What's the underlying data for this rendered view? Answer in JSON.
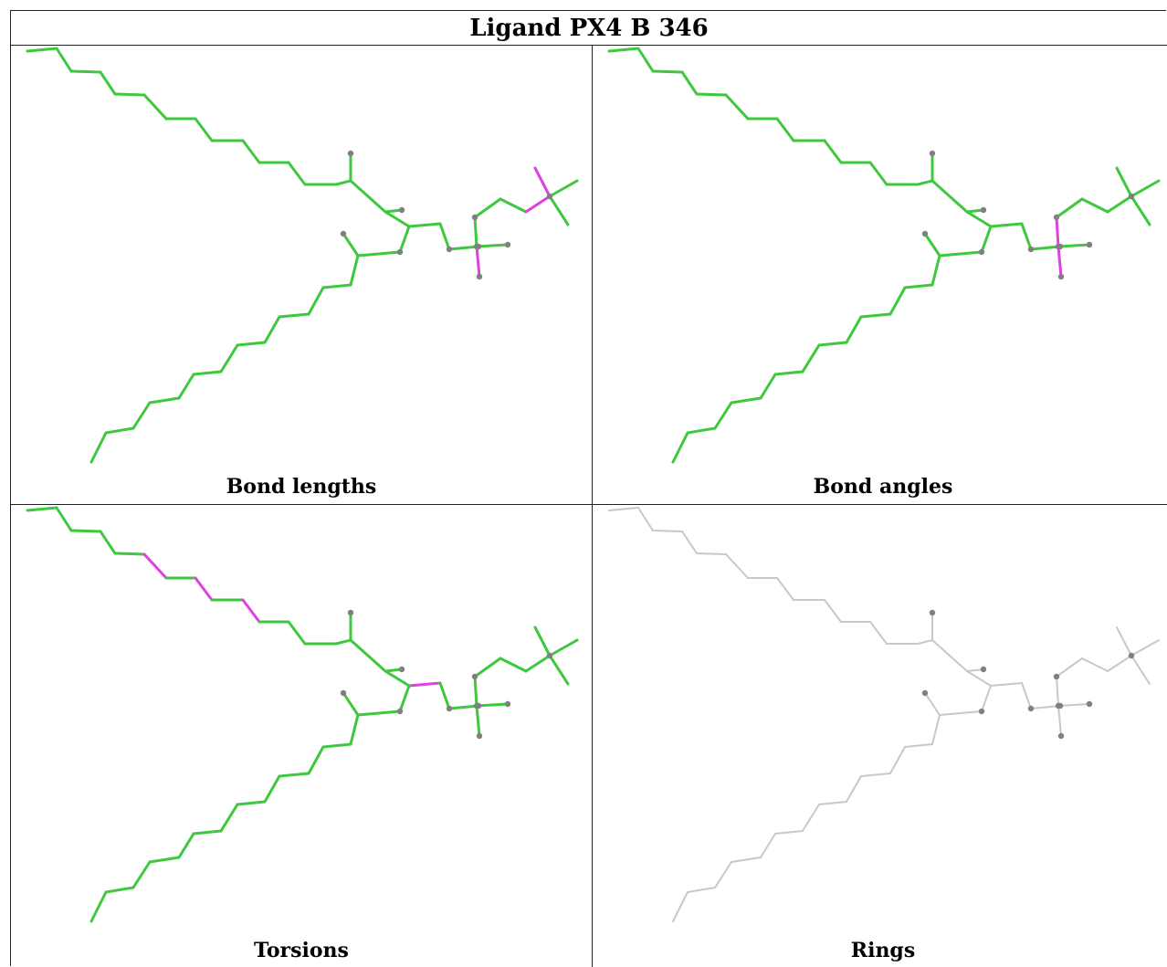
{
  "table": {
    "title": "Ligand PX4 B 346"
  },
  "panels": [
    {
      "id": "bond-lengths",
      "caption": "Bond lengths",
      "highlight": [
        [
          61,
          62
        ],
        [
          62,
          63
        ],
        [
          63,
          64
        ],
        [
          52,
          53
        ]
      ],
      "gray": [
        [
          46,
          47
        ],
        [
          47,
          48
        ],
        [
          54,
          55
        ],
        [
          52,
          54
        ],
        [
          56,
          57
        ],
        [
          58,
          59
        ],
        [
          60,
          61
        ]
      ],
      "dim": false
    },
    {
      "id": "bond-angles",
      "caption": "Bond angles",
      "highlight": [
        [
          52,
          53
        ],
        [
          52,
          56
        ],
        [
          52,
          57
        ]
      ],
      "gray": [
        [
          46,
          47
        ],
        [
          47,
          48
        ],
        [
          54,
          55
        ],
        [
          56,
          57
        ],
        [
          58,
          59
        ]
      ],
      "dim": false
    },
    {
      "id": "torsions",
      "caption": "Torsions",
      "highlight": [
        [
          5,
          6
        ],
        [
          7,
          8
        ],
        [
          9,
          10
        ],
        [
          48,
          49
        ],
        [
          49,
          50
        ],
        [
          50,
          51
        ],
        [
          51,
          52
        ],
        [
          30,
          31
        ]
      ],
      "gray": [
        [
          0,
          1
        ],
        [
          45,
          46
        ],
        [
          46,
          47
        ],
        [
          47,
          48
        ],
        [
          54,
          55
        ],
        [
          52,
          54
        ],
        [
          52,
          56
        ],
        [
          52,
          57
        ],
        [
          56,
          57
        ],
        [
          58,
          59
        ],
        [
          60,
          61
        ],
        [
          61,
          62
        ],
        [
          62,
          63
        ],
        [
          63,
          64
        ],
        [
          64,
          65
        ],
        [
          64,
          66
        ],
        [
          64,
          67
        ],
        [
          28,
          29
        ],
        [
          29,
          30
        ],
        [
          28,
          45
        ]
      ],
      "dim": false
    },
    {
      "id": "rings",
      "caption": "Rings",
      "highlight": [],
      "gray": [],
      "dim": true
    }
  ],
  "colors": {
    "bond_ok": "#3ec83e",
    "bond_outlier": "#e040e0",
    "bond_neutral": "#c8c8c8",
    "atom": "#808080",
    "border": "#222222"
  }
}
